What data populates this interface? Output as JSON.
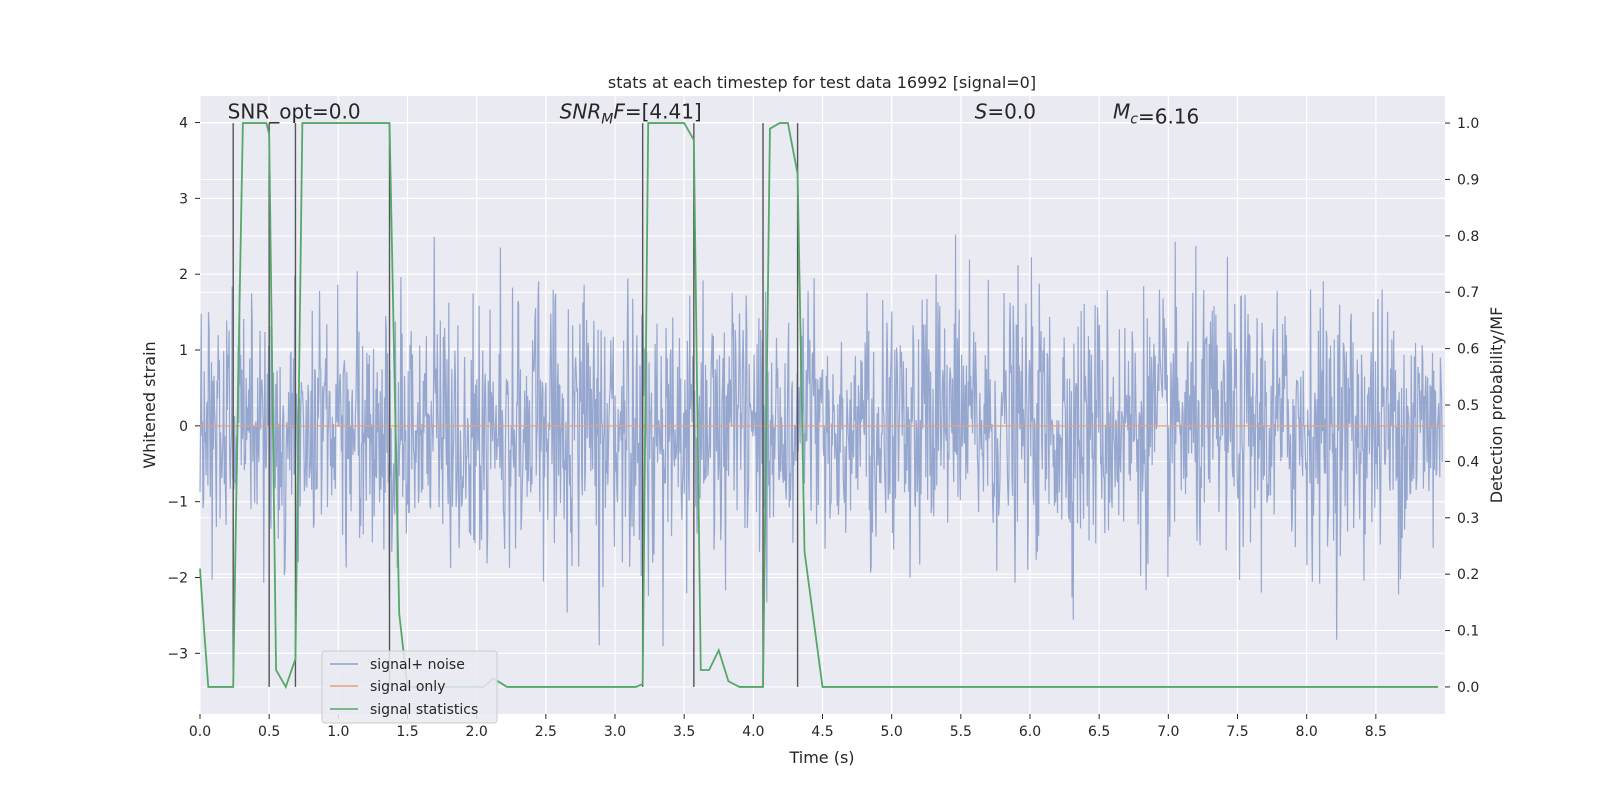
{
  "chart_data": {
    "type": "line",
    "title": "stats at each timestep for test data 16992 [signal=0]",
    "xlabel": "Time (s)",
    "ylabel": "Whitened strain",
    "y2label": "Detection probability/MF",
    "xlim": [
      0.0,
      9.0
    ],
    "ylim": [
      -3.8,
      4.35
    ],
    "y2lim": [
      -0.048,
      1.048
    ],
    "x_ticks": [
      0.0,
      0.5,
      1.0,
      1.5,
      2.0,
      2.5,
      3.0,
      3.5,
      4.0,
      4.5,
      5.0,
      5.5,
      6.0,
      6.5,
      7.0,
      7.5,
      8.0,
      8.5
    ],
    "x_tick_labels": [
      "0.0",
      "0.5",
      "1.0",
      "1.5",
      "2.0",
      "2.5",
      "3.0",
      "3.5",
      "4.0",
      "4.5",
      "5.0",
      "5.5",
      "6.0",
      "6.5",
      "7.0",
      "7.5",
      "8.0",
      "8.5"
    ],
    "y_ticks": [
      4,
      3,
      2,
      1,
      0,
      -1,
      -2,
      -3
    ],
    "y_tick_labels": [
      "4",
      "3",
      "2",
      "1",
      "0",
      "−1",
      "−2",
      "−3"
    ],
    "y2_ticks": [
      1.0,
      0.9,
      0.8,
      0.7,
      0.6,
      0.5,
      0.4,
      0.3,
      0.2,
      0.1,
      0.0
    ],
    "y2_tick_labels": [
      "1.0",
      "0.9",
      "0.8",
      "0.7",
      "0.6",
      "0.5",
      "0.4",
      "0.3",
      "0.2",
      "0.1",
      "0.0"
    ],
    "grid": true,
    "legend_position": "lower-left",
    "annotations": [
      {
        "text": "SNR_opt=0.0",
        "x": 0.2,
        "y": 4.05,
        "font": "normal"
      },
      {
        "text": "SNR_MF=[4.41]",
        "x": 2.6,
        "y": 4.05,
        "font": "math"
      },
      {
        "text": "S=0.0",
        "x": 5.6,
        "y": 4.05,
        "font": "math"
      },
      {
        "text": "M_c=6.16",
        "x": 6.6,
        "y": 4.05,
        "font": "math"
      }
    ],
    "vertical_lines_x": [
      0.24,
      0.5,
      0.69,
      1.37,
      3.2,
      3.57,
      4.07,
      4.32
    ],
    "series": [
      {
        "name": "signal+ noise",
        "color": "#8da0cb",
        "axis": "left",
        "style": "noise",
        "n_points": 2048,
        "std": 0.85,
        "peak_range": [
          -3.5,
          3.7
        ]
      },
      {
        "name": "signal only",
        "color": "#e5a07e",
        "axis": "left",
        "x": [
          0.0,
          9.0
        ],
        "values": [
          0.0,
          0.0
        ]
      },
      {
        "name": "signal statistics",
        "color": "#55a868",
        "axis": "right",
        "x": [
          0.0,
          0.03,
          0.06,
          0.13,
          0.24,
          0.28,
          0.31,
          0.48,
          0.5,
          0.55,
          0.62,
          0.69,
          0.74,
          1.37,
          1.44,
          1.5,
          2.05,
          2.12,
          2.22,
          3.15,
          3.2,
          3.24,
          3.5,
          3.57,
          3.62,
          3.68,
          3.75,
          3.82,
          3.9,
          4.07,
          4.12,
          4.19,
          4.25,
          4.32,
          4.37,
          4.5,
          8.95
        ],
        "values": [
          0.21,
          0.1,
          0.0,
          0.0,
          0.0,
          0.6,
          1.0,
          1.0,
          0.98,
          0.03,
          0.0,
          0.05,
          1.0,
          1.0,
          0.13,
          0.0,
          0.0,
          0.015,
          0.0,
          0.0,
          0.005,
          1.0,
          1.0,
          0.97,
          0.03,
          0.03,
          0.065,
          0.01,
          0.0,
          0.0,
          0.99,
          1.0,
          1.0,
          0.91,
          0.24,
          0.0,
          0.0
        ]
      }
    ]
  },
  "legend": {
    "items": [
      {
        "label": "signal+ noise",
        "color": "#8da0cb"
      },
      {
        "label": "signal only",
        "color": "#e5a07e"
      },
      {
        "label": "signal statistics",
        "color": "#55a868"
      }
    ]
  }
}
